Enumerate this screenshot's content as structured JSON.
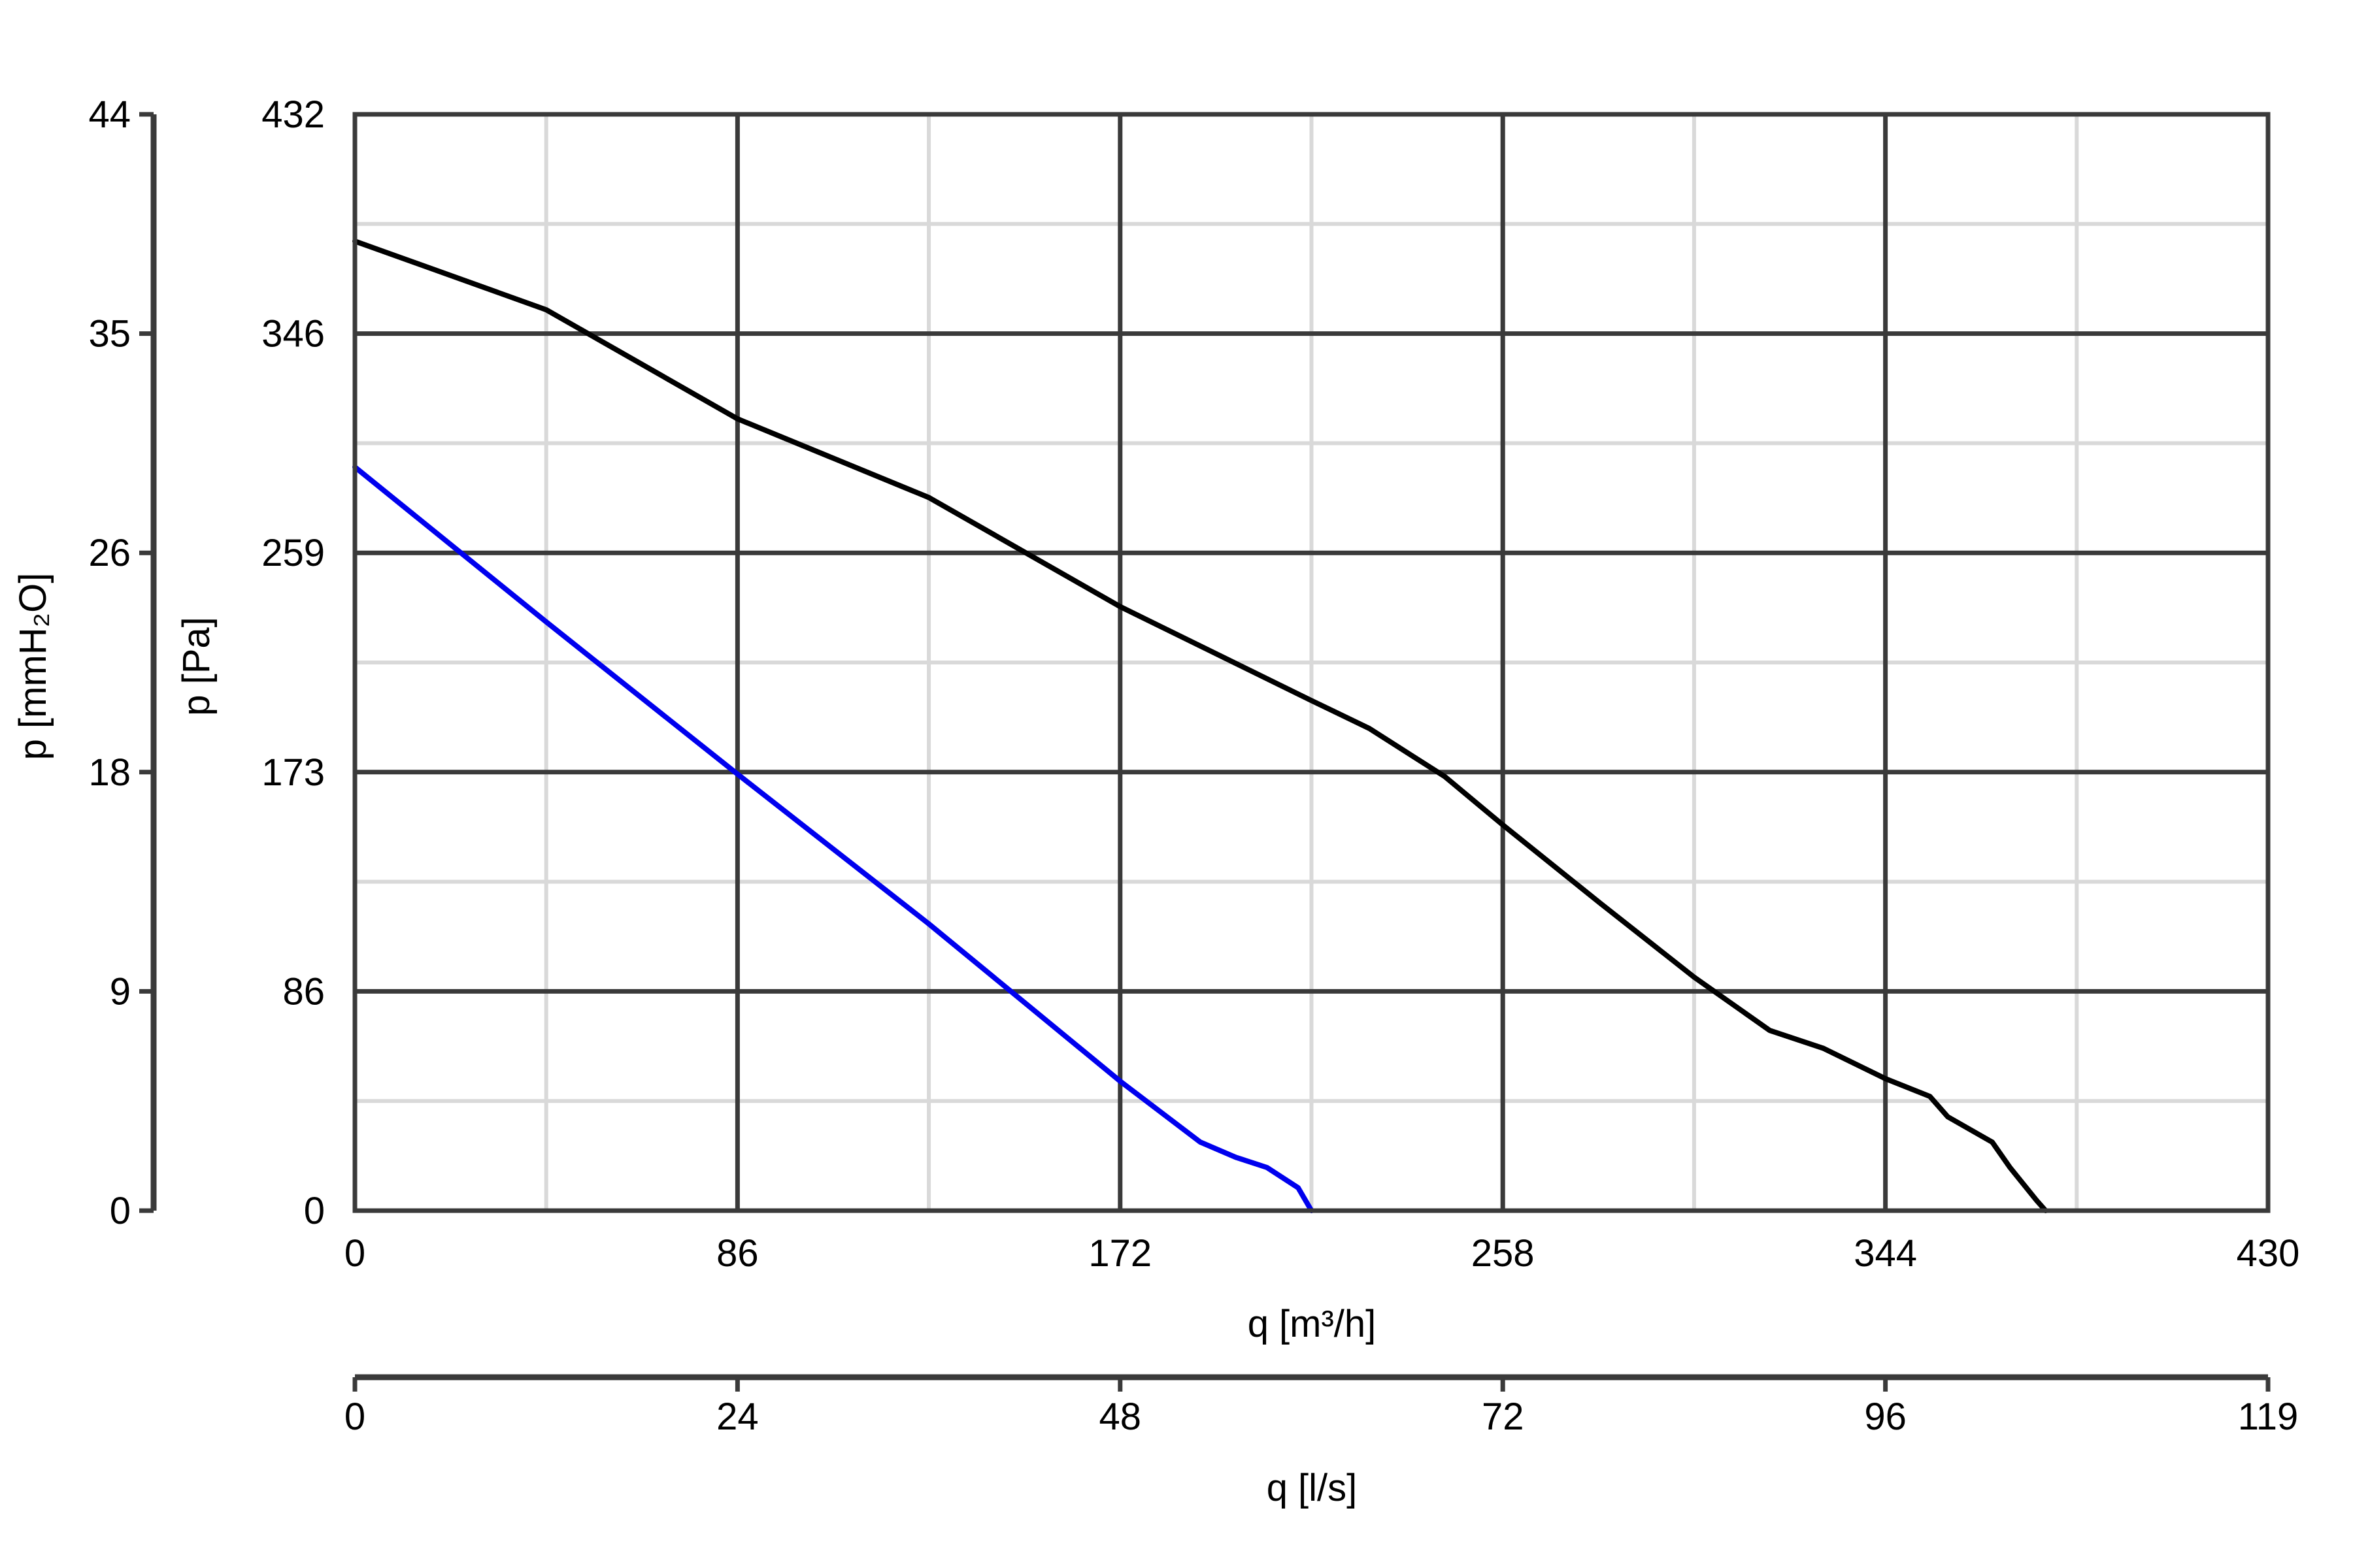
{
  "chart_data": {
    "type": "line",
    "xlabel": "q [m³/h]",
    "x2label": "q [l/s]",
    "ylabel": "p [Pa]",
    "y2label": "p [mmH₂O]",
    "xlim": [
      0,
      430
    ],
    "ylim": [
      0,
      432
    ],
    "x_ticks": [
      "0",
      "86",
      "172",
      "258",
      "344",
      "430"
    ],
    "x2_ticks": [
      "0",
      "24",
      "48",
      "72",
      "96",
      "119"
    ],
    "y_ticks": [
      "0",
      "86",
      "173",
      "259",
      "346",
      "432"
    ],
    "y2_ticks": [
      "0",
      "9",
      "18",
      "26",
      "35",
      "44"
    ],
    "grid": true,
    "legend": "none",
    "series": [
      {
        "color": "#000000",
        "points": [
          [
            0,
            382
          ],
          [
            43,
            355
          ],
          [
            86,
            312
          ],
          [
            129,
            281
          ],
          [
            172,
            238
          ],
          [
            215,
            201
          ],
          [
            228,
            190
          ],
          [
            245,
            171
          ],
          [
            258,
            152
          ],
          [
            280,
            121
          ],
          [
            301,
            92
          ],
          [
            318,
            71
          ],
          [
            330,
            64
          ],
          [
            344,
            52
          ],
          [
            354,
            45
          ],
          [
            358,
            37
          ],
          [
            368,
            27
          ],
          [
            372,
            17
          ],
          [
            378,
            4
          ],
          [
            380,
            0
          ]
        ]
      },
      {
        "color": "#0000ee",
        "points": [
          [
            0,
            293
          ],
          [
            43,
            232
          ],
          [
            86,
            172
          ],
          [
            129,
            113
          ],
          [
            172,
            51
          ],
          [
            190,
            27
          ],
          [
            198,
            21
          ],
          [
            205,
            17
          ],
          [
            212,
            9
          ],
          [
            215,
            0
          ]
        ]
      }
    ]
  }
}
